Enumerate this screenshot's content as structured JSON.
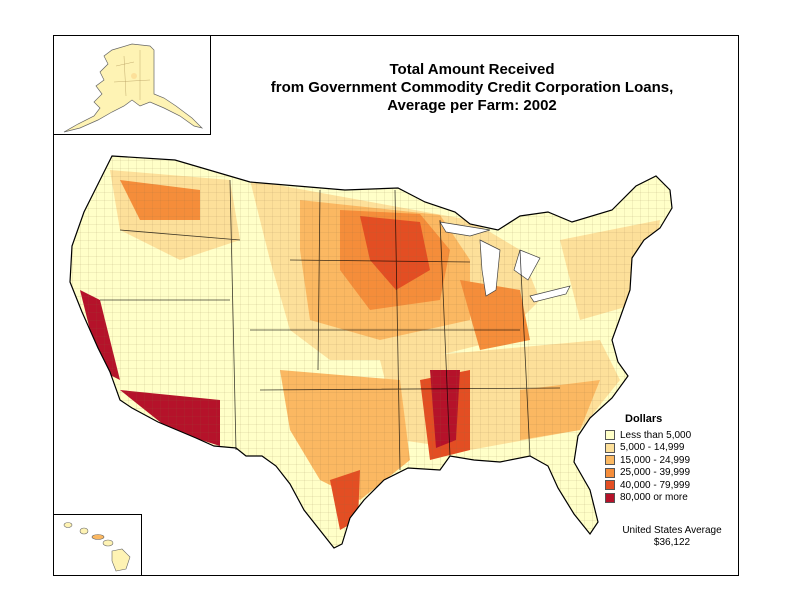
{
  "title": {
    "line1": "Total Amount Received",
    "line2": "from Government Commodity Credit Corporation Loans,",
    "line3": "Average per Farm:  2002"
  },
  "legend": {
    "title": "Dollars",
    "classes": [
      {
        "label": "Less than 5,000",
        "color": "#ffffc8"
      },
      {
        "label": "5,000 - 14,999",
        "color": "#fde09a"
      },
      {
        "label": "15,000 - 24,999",
        "color": "#fbb862"
      },
      {
        "label": "25,000 - 39,999",
        "color": "#f58d3a"
      },
      {
        "label": "40,000 - 79,999",
        "color": "#e34e23"
      },
      {
        "label": "80,000 or more",
        "color": "#b5122a"
      }
    ]
  },
  "average": {
    "label": "United States Average",
    "value": "$36,122"
  }
}
